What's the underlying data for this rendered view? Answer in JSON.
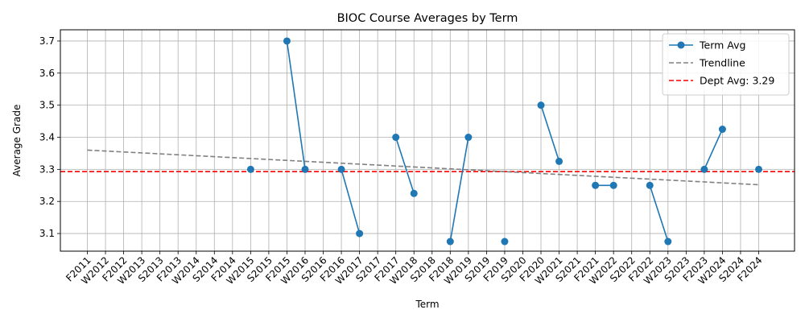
{
  "chart_data": {
    "type": "line",
    "title": "BIOC Course Averages by Term",
    "xlabel": "Term",
    "ylabel": "Average Grade",
    "categories": [
      "F2011",
      "W2012",
      "F2012",
      "W2013",
      "S2013",
      "F2013",
      "W2014",
      "S2014",
      "F2014",
      "W2015",
      "S2015",
      "F2015",
      "W2016",
      "S2016",
      "F2016",
      "W2017",
      "S2017",
      "F2017",
      "W2018",
      "S2018",
      "F2018",
      "W2019",
      "S2019",
      "F2019",
      "S2020",
      "F2020",
      "W2021",
      "S2021",
      "F2021",
      "W2022",
      "S2022",
      "F2022",
      "W2023",
      "S2023",
      "F2023",
      "W2024",
      "S2024",
      "F2024"
    ],
    "ylim": [
      3.045,
      3.735
    ],
    "yticks": [
      3.1,
      3.2,
      3.3,
      3.4,
      3.5,
      3.6,
      3.7
    ],
    "grid": true,
    "legend_position": "top-right",
    "series": [
      {
        "name": "Term Avg",
        "color": "#1f77b4",
        "marker": "circle",
        "values": [
          null,
          null,
          null,
          null,
          null,
          null,
          null,
          null,
          null,
          3.3,
          null,
          3.7,
          3.3,
          null,
          3.3,
          3.1,
          null,
          3.4,
          3.225,
          null,
          3.075,
          3.4,
          null,
          3.075,
          null,
          3.5,
          3.325,
          null,
          3.25,
          3.25,
          null,
          3.25,
          3.075,
          null,
          3.3,
          3.425,
          null,
          3.3
        ]
      },
      {
        "name": "Trendline",
        "color": "#808080",
        "style": "dashed",
        "start": 3.36,
        "end": 3.252
      }
    ],
    "reference_line": {
      "label": "Dept Avg: 3.29",
      "value": 3.293,
      "color": "#ff0000",
      "style": "dashed"
    }
  }
}
